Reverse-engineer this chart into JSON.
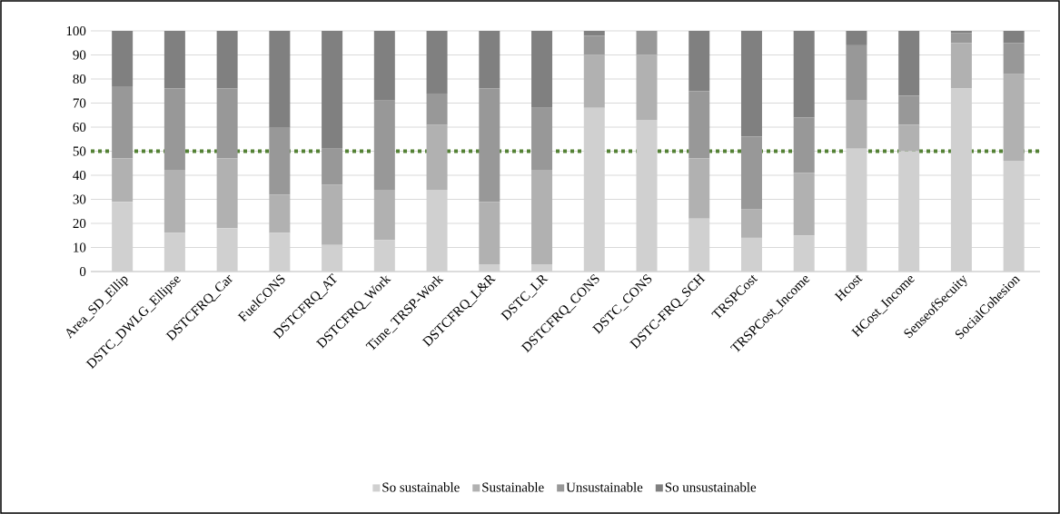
{
  "chart_data": {
    "type": "bar",
    "stacked": true,
    "categories": [
      "Area_SD_Ellip",
      "DSTC_DWLG_Ellipse",
      "DSTCFRQ_Car",
      "FuelCONS",
      "DSTCFRQ_AT",
      "DSTCFRQ_Work",
      "Time_TRSP-Work",
      "DSTCFRQ_L&R",
      "DSTC_LR",
      "DSTCFRQ_CONS",
      "DSTC_CONS",
      "DSTC-FRQ_SCH",
      "TRSPCost",
      "TRSPCost_Income",
      "Hcost",
      "HCost_Income",
      "SenseofSecuity",
      "SocialCohesion"
    ],
    "series": [
      {
        "name": "So sustainable",
        "color": "#d0d0d0",
        "values": [
          29,
          16,
          18,
          16,
          11,
          13,
          34,
          3,
          3,
          68,
          63,
          22,
          14,
          15,
          51,
          50,
          76,
          46
        ]
      },
      {
        "name": "Sustainable",
        "color": "#b1b1b1",
        "values": [
          18,
          26,
          29,
          16,
          25,
          21,
          27,
          26,
          39,
          22,
          27,
          25,
          12,
          26,
          20,
          11,
          19,
          36
        ]
      },
      {
        "name": "Unsustainable",
        "color": "#989898",
        "values": [
          30,
          34,
          29,
          28,
          15,
          37,
          13,
          47,
          26,
          8,
          10,
          28,
          30,
          23,
          23,
          12,
          4,
          13
        ]
      },
      {
        "name": "So unsustainable",
        "color": "#808080",
        "values": [
          23,
          24,
          24,
          40,
          49,
          29,
          26,
          24,
          32,
          2,
          0,
          25,
          44,
          36,
          6,
          27,
          1,
          5
        ]
      }
    ],
    "ylim": [
      0,
      100
    ],
    "yticks": [
      0,
      10,
      20,
      30,
      40,
      50,
      60,
      70,
      80,
      90,
      100
    ],
    "grid": "y",
    "legend": "bottom",
    "ref_lines": [
      {
        "axis": "y",
        "value": 50,
        "color": "#548235",
        "line_style": "dotted"
      }
    ]
  }
}
